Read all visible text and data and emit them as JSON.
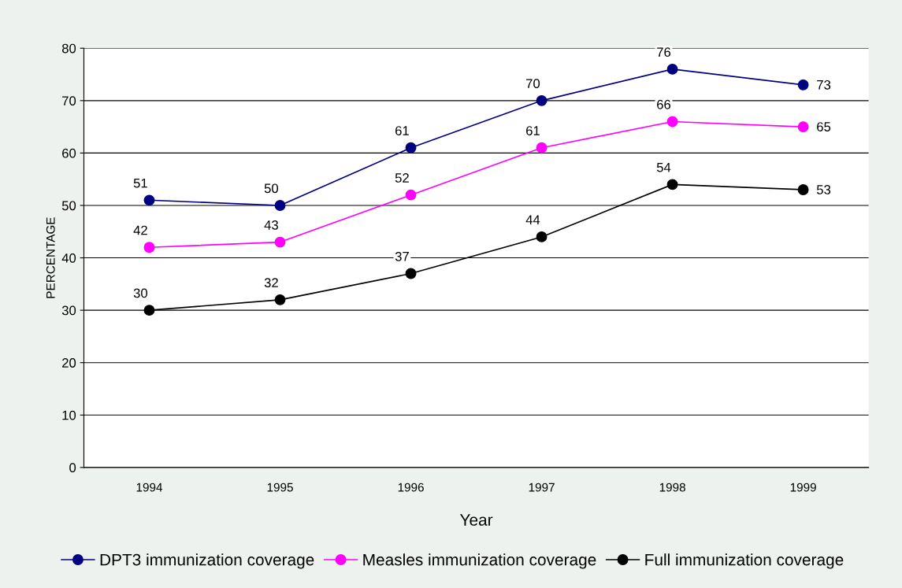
{
  "chart_data": {
    "type": "line",
    "xlabel": "Year",
    "ylabel": "PERCENTAGE",
    "categories": [
      "1994",
      "1995",
      "1996",
      "1997",
      "1998",
      "1999"
    ],
    "series": [
      {
        "name": "DPT3 immunization coverage",
        "color": "#000080",
        "values": [
          51,
          50,
          61,
          70,
          76,
          73
        ]
      },
      {
        "name": "Measles immunization coverage",
        "color": "#ff00ff",
        "values": [
          42,
          43,
          52,
          61,
          66,
          65
        ]
      },
      {
        "name": "Full immunization coverage",
        "color": "#000000",
        "values": [
          30,
          32,
          37,
          44,
          54,
          53
        ]
      }
    ],
    "ylim": [
      0,
      80
    ],
    "yticks": [
      0,
      10,
      20,
      30,
      40,
      50,
      60,
      70,
      80
    ],
    "grid": "y",
    "legend": "bottom",
    "marker": "circle",
    "line_style": "solid",
    "data_labels": true
  }
}
